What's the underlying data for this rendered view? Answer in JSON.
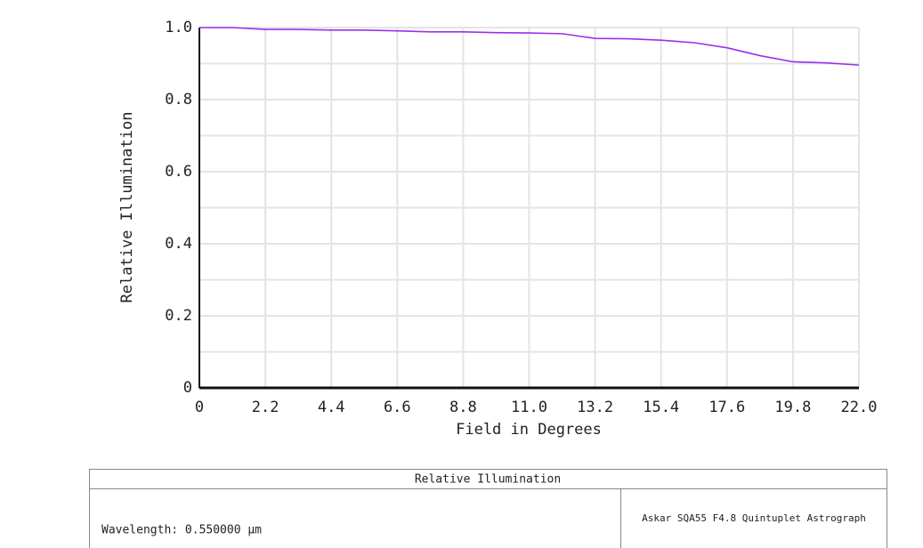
{
  "chart_data": {
    "type": "line",
    "x_label": "Field in Degrees",
    "y_label": "Relative Illumination",
    "x": [
      0,
      1.1,
      2.2,
      3.3,
      4.4,
      5.5,
      6.6,
      7.7,
      8.8,
      9.9,
      11.0,
      12.1,
      13.2,
      14.3,
      15.4,
      16.5,
      17.6,
      18.7,
      19.8,
      20.9,
      22.0
    ],
    "series": [
      {
        "color": "#9b30e8",
        "values": [
          1.0,
          1.0,
          0.995,
          0.995,
          0.993,
          0.993,
          0.991,
          0.988,
          0.988,
          0.986,
          0.985,
          0.983,
          0.97,
          0.969,
          0.965,
          0.958,
          0.944,
          0.922,
          0.905,
          0.902,
          0.896
        ]
      }
    ],
    "xlim": [
      0,
      22.0
    ],
    "ylim": [
      0,
      1.0
    ],
    "xticks": [
      0,
      2.2,
      4.4,
      6.6,
      8.8,
      {
        "value": 11.0,
        "label": "11.0"
      },
      13.2,
      15.4,
      17.6,
      19.8,
      {
        "value": 22.0,
        "label": "22.0"
      }
    ],
    "yticks": [
      0,
      0.2,
      0.4,
      0.6,
      0.8,
      {
        "value": 1.0,
        "label": "1.0"
      }
    ],
    "yminorticks": [
      0.1,
      0.3,
      0.5,
      0.7,
      0.9
    ],
    "grid": true
  },
  "info_panel": {
    "title": "Relative Illumination",
    "left": "Wavelength: 0.550000 µm",
    "right": "Askar SQA55 F4.8 Quintuplet Astrograph"
  }
}
